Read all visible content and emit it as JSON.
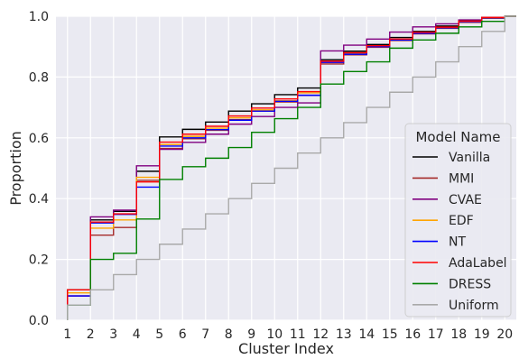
{
  "chart_data": {
    "type": "line",
    "step": "post",
    "xlabel": "Cluster Index",
    "ylabel": "Proportion",
    "categories": [
      "1",
      "2",
      "3",
      "4",
      "5",
      "6",
      "7",
      "8",
      "9",
      "10",
      "11",
      "12",
      "13",
      "14",
      "15",
      "16",
      "17",
      "18",
      "19",
      "20"
    ],
    "x": [
      1,
      2,
      3,
      4,
      5,
      6,
      7,
      8,
      9,
      10,
      11,
      12,
      13,
      14,
      15,
      16,
      17,
      18,
      19,
      20
    ],
    "xlim": [
      0.5,
      20.5
    ],
    "ylim": [
      0,
      1.0
    ],
    "yticks": [
      "0.0",
      "0.2",
      "0.4",
      "0.6",
      "0.8",
      "1.0"
    ],
    "grid": true,
    "legend": {
      "title": "Model Name",
      "placement": "lower-right"
    },
    "series": [
      {
        "name": "Vanilla",
        "color": "#000000",
        "values": [
          0.1,
          0.33,
          0.358,
          0.49,
          0.603,
          0.628,
          0.652,
          0.688,
          0.712,
          0.742,
          0.764,
          0.857,
          0.885,
          0.907,
          0.93,
          0.95,
          0.968,
          0.985,
          0.996,
          1.0
        ]
      },
      {
        "name": "MMI",
        "color": "#a52a2a",
        "values": [
          0.08,
          0.28,
          0.305,
          0.46,
          0.565,
          0.597,
          0.625,
          0.66,
          0.688,
          0.718,
          0.74,
          0.843,
          0.873,
          0.898,
          0.92,
          0.942,
          0.96,
          0.98,
          0.993,
          1.0
        ]
      },
      {
        "name": "CVAE",
        "color": "#800080",
        "values": [
          0.08,
          0.34,
          0.362,
          0.508,
          0.562,
          0.585,
          0.612,
          0.645,
          0.67,
          0.7,
          0.715,
          0.886,
          0.905,
          0.925,
          0.948,
          0.965,
          0.975,
          0.988,
          0.996,
          1.0
        ]
      },
      {
        "name": "EDF",
        "color": "#ffa500",
        "values": [
          0.09,
          0.303,
          0.33,
          0.47,
          0.578,
          0.605,
          0.632,
          0.666,
          0.692,
          0.722,
          0.748,
          0.848,
          0.878,
          0.902,
          0.922,
          0.945,
          0.962,
          0.982,
          0.995,
          1.0
        ]
      },
      {
        "name": "NT",
        "color": "#0000ff",
        "values": [
          0.08,
          0.32,
          0.348,
          0.438,
          0.573,
          0.6,
          0.627,
          0.658,
          0.688,
          0.72,
          0.74,
          0.848,
          0.875,
          0.9,
          0.922,
          0.944,
          0.962,
          0.982,
          0.995,
          1.0
        ]
      },
      {
        "name": "AdaLabel",
        "color": "#ff0000",
        "values": [
          0.1,
          0.323,
          0.35,
          0.455,
          0.586,
          0.612,
          0.638,
          0.672,
          0.698,
          0.728,
          0.752,
          0.852,
          0.88,
          0.903,
          0.925,
          0.947,
          0.964,
          0.984,
          0.996,
          1.0
        ]
      },
      {
        "name": "DRESS",
        "color": "#008000",
        "values": [
          0.05,
          0.2,
          0.22,
          0.333,
          0.463,
          0.505,
          0.533,
          0.568,
          0.618,
          0.663,
          0.7,
          0.777,
          0.818,
          0.85,
          0.895,
          0.922,
          0.944,
          0.965,
          0.983,
          1.0
        ]
      },
      {
        "name": "Uniform",
        "color": "#a9a9a9",
        "values": [
          0.05,
          0.1,
          0.15,
          0.2,
          0.25,
          0.3,
          0.35,
          0.4,
          0.45,
          0.5,
          0.55,
          0.6,
          0.65,
          0.7,
          0.75,
          0.8,
          0.85,
          0.9,
          0.95,
          1.0
        ]
      }
    ]
  }
}
